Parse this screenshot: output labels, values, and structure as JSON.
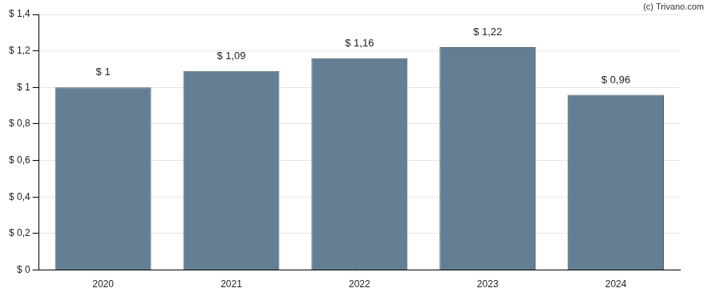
{
  "chart_data": {
    "type": "bar",
    "categories": [
      "2020",
      "2021",
      "2022",
      "2023",
      "2024"
    ],
    "values": [
      1,
      1.09,
      1.16,
      1.22,
      0.96
    ],
    "value_labels": [
      "$ 1",
      "$ 1,09",
      "$ 1,16",
      "$ 1,22",
      "$ 0,96"
    ],
    "data_labels": true,
    "color": "#647f93",
    "ylim": [
      0,
      1.4
    ],
    "yticks": [
      {
        "value": 0,
        "label": "$ 0"
      },
      {
        "value": 0.2,
        "label": "$ 0,2"
      },
      {
        "value": 0.4,
        "label": "$ 0,4"
      },
      {
        "value": 0.6,
        "label": "$ 0,6"
      },
      {
        "value": 0.8,
        "label": "$ 0,8"
      },
      {
        "value": 1,
        "label": "$ 1"
      },
      {
        "value": 1.2,
        "label": "$ 1,2"
      },
      {
        "value": 1.4,
        "label": "$ 1,4"
      }
    ],
    "grid": true,
    "annotations": [
      "(c) Trivano.com"
    ]
  }
}
